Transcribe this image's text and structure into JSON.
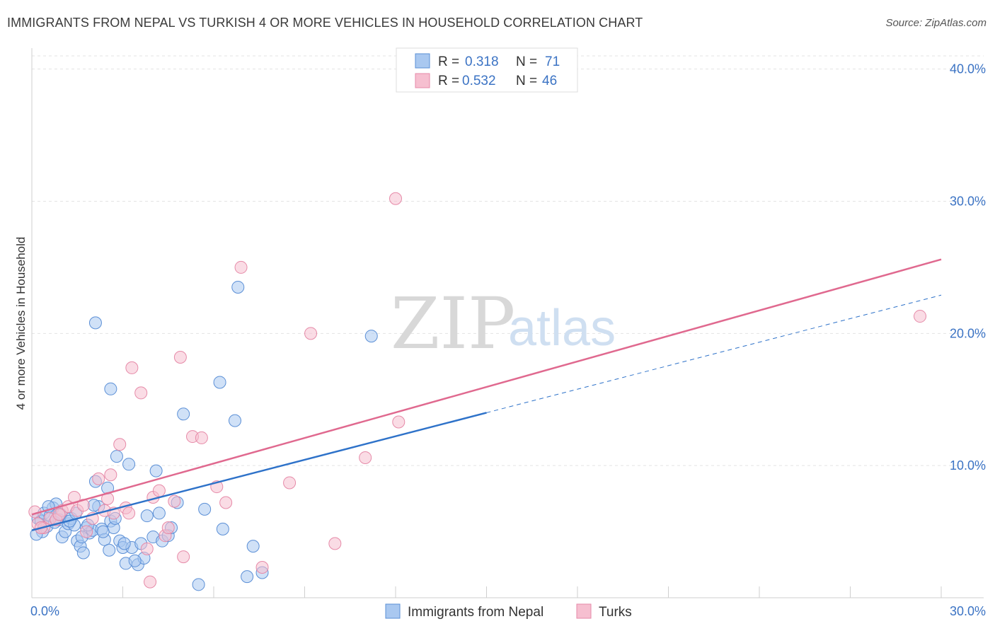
{
  "header": {
    "title": "IMMIGRANTS FROM NEPAL VS TURKISH 4 OR MORE VEHICLES IN HOUSEHOLD CORRELATION CHART",
    "source": "Source: ZipAtlas.com"
  },
  "watermark": {
    "zip": "ZIP",
    "atlas": "atlas"
  },
  "legend": {
    "rows": [
      {
        "r_label": "R =",
        "r_value": "0.318",
        "n_label": "N =",
        "n_value": "71"
      },
      {
        "r_label": "R =",
        "r_value": "0.532",
        "n_label": "N =",
        "n_value": "46"
      }
    ]
  },
  "bottom_legend": {
    "series1": "Immigrants from Nepal",
    "series2": "Turks"
  },
  "colors": {
    "series1_fill": "#a9c8f0",
    "series1_stroke": "#5b8fd6",
    "series1_line": "#2e72c9",
    "series2_fill": "#f6bfd0",
    "series2_stroke": "#e68aa8",
    "series2_line": "#e0698f",
    "tick": "#3b73c4"
  },
  "chart_data": {
    "type": "scatter",
    "title": "IMMIGRANTS FROM NEPAL VS TURKISH 4 OR MORE VEHICLES IN HOUSEHOLD CORRELATION CHART",
    "xlabel": "",
    "ylabel": "4 or more Vehicles in Household",
    "xlim": [
      0,
      30
    ],
    "ylim": [
      0,
      41
    ],
    "x_ticks": [
      "0.0%",
      "30.0%"
    ],
    "y_ticks": [
      {
        "value": 10,
        "label": "10.0%"
      },
      {
        "value": 20,
        "label": "20.0%"
      },
      {
        "value": 30,
        "label": "30.0%"
      },
      {
        "value": 40,
        "label": "40.0%"
      }
    ],
    "grid": true,
    "legend_position": "top-center",
    "series": [
      {
        "name": "Immigrants from Nepal",
        "R": 0.318,
        "N": 71,
        "trend": {
          "x0": 0,
          "y0": 5.1,
          "x1": 15,
          "y1": 14.0,
          "dashed_to_x": 30,
          "dashed_to_y": 22.9
        },
        "points": [
          [
            0.2,
            6.0
          ],
          [
            0.3,
            5.8
          ],
          [
            0.4,
            6.4
          ],
          [
            0.5,
            5.4
          ],
          [
            0.6,
            6.2
          ],
          [
            0.7,
            6.8
          ],
          [
            0.8,
            7.1
          ],
          [
            0.9,
            5.9
          ],
          [
            1.0,
            4.6
          ],
          [
            1.1,
            5.0
          ],
          [
            1.2,
            5.6
          ],
          [
            1.3,
            6.0
          ],
          [
            1.4,
            5.5
          ],
          [
            1.5,
            4.3
          ],
          [
            1.6,
            3.9
          ],
          [
            1.7,
            3.4
          ],
          [
            1.8,
            5.3
          ],
          [
            1.9,
            4.9
          ],
          [
            2.0,
            5.1
          ],
          [
            2.1,
            8.8
          ],
          [
            2.2,
            6.9
          ],
          [
            2.3,
            5.2
          ],
          [
            2.4,
            4.4
          ],
          [
            2.5,
            8.3
          ],
          [
            2.6,
            5.8
          ],
          [
            2.7,
            5.3
          ],
          [
            2.8,
            10.7
          ],
          [
            2.9,
            4.3
          ],
          [
            3.0,
            3.8
          ],
          [
            3.1,
            2.6
          ],
          [
            3.2,
            10.1
          ],
          [
            3.3,
            3.8
          ],
          [
            3.5,
            2.5
          ],
          [
            3.6,
            4.1
          ],
          [
            3.7,
            3.0
          ],
          [
            3.8,
            6.2
          ],
          [
            4.0,
            4.6
          ],
          [
            4.1,
            9.6
          ],
          [
            4.2,
            6.4
          ],
          [
            4.3,
            4.3
          ],
          [
            4.5,
            4.7
          ],
          [
            4.6,
            5.3
          ],
          [
            4.8,
            7.2
          ],
          [
            5.0,
            13.9
          ],
          [
            5.5,
            1.0
          ],
          [
            5.7,
            6.7
          ],
          [
            6.2,
            16.3
          ],
          [
            6.3,
            5.2
          ],
          [
            6.7,
            13.4
          ],
          [
            6.8,
            23.5
          ],
          [
            7.1,
            1.6
          ],
          [
            7.3,
            3.9
          ],
          [
            7.6,
            1.9
          ],
          [
            11.2,
            19.8
          ],
          [
            2.1,
            20.8
          ],
          [
            2.6,
            15.8
          ],
          [
            0.35,
            5.0
          ],
          [
            0.55,
            6.9
          ],
          [
            0.75,
            5.7
          ],
          [
            0.95,
            6.3
          ],
          [
            1.25,
            5.8
          ],
          [
            1.45,
            6.4
          ],
          [
            1.65,
            4.6
          ],
          [
            1.85,
            5.5
          ],
          [
            2.05,
            7.0
          ],
          [
            2.35,
            5.0
          ],
          [
            2.55,
            3.6
          ],
          [
            2.75,
            6.0
          ],
          [
            3.05,
            4.1
          ],
          [
            3.4,
            2.8
          ],
          [
            0.15,
            4.8
          ]
        ]
      },
      {
        "name": "Turks",
        "R": 0.532,
        "N": 46,
        "trend": {
          "x0": 0,
          "y0": 6.3,
          "x1": 30,
          "y1": 25.6
        },
        "points": [
          [
            0.1,
            6.5
          ],
          [
            0.2,
            5.6
          ],
          [
            0.4,
            5.3
          ],
          [
            0.6,
            6.0
          ],
          [
            0.8,
            5.9
          ],
          [
            1.0,
            6.6
          ],
          [
            1.2,
            6.9
          ],
          [
            1.4,
            7.6
          ],
          [
            1.5,
            6.6
          ],
          [
            1.7,
            7.0
          ],
          [
            1.8,
            5.0
          ],
          [
            2.0,
            6.0
          ],
          [
            2.2,
            9.0
          ],
          [
            2.4,
            6.6
          ],
          [
            2.5,
            7.5
          ],
          [
            2.7,
            6.4
          ],
          [
            2.9,
            11.6
          ],
          [
            3.1,
            6.8
          ],
          [
            3.2,
            6.4
          ],
          [
            3.3,
            17.4
          ],
          [
            3.6,
            15.5
          ],
          [
            3.8,
            3.7
          ],
          [
            3.9,
            1.2
          ],
          [
            4.0,
            7.6
          ],
          [
            4.2,
            8.1
          ],
          [
            4.4,
            4.7
          ],
          [
            4.5,
            5.3
          ],
          [
            4.9,
            18.2
          ],
          [
            5.0,
            3.1
          ],
          [
            5.3,
            12.2
          ],
          [
            5.6,
            12.1
          ],
          [
            6.1,
            8.4
          ],
          [
            6.4,
            7.2
          ],
          [
            6.9,
            25.0
          ],
          [
            7.6,
            2.3
          ],
          [
            8.5,
            8.7
          ],
          [
            9.2,
            20.0
          ],
          [
            10.0,
            4.1
          ],
          [
            11.0,
            10.6
          ],
          [
            12.0,
            30.2
          ],
          [
            12.1,
            13.3
          ],
          [
            29.3,
            21.3
          ],
          [
            0.3,
            5.3
          ],
          [
            0.9,
            6.3
          ],
          [
            2.6,
            9.3
          ],
          [
            4.7,
            7.3
          ]
        ]
      }
    ]
  }
}
